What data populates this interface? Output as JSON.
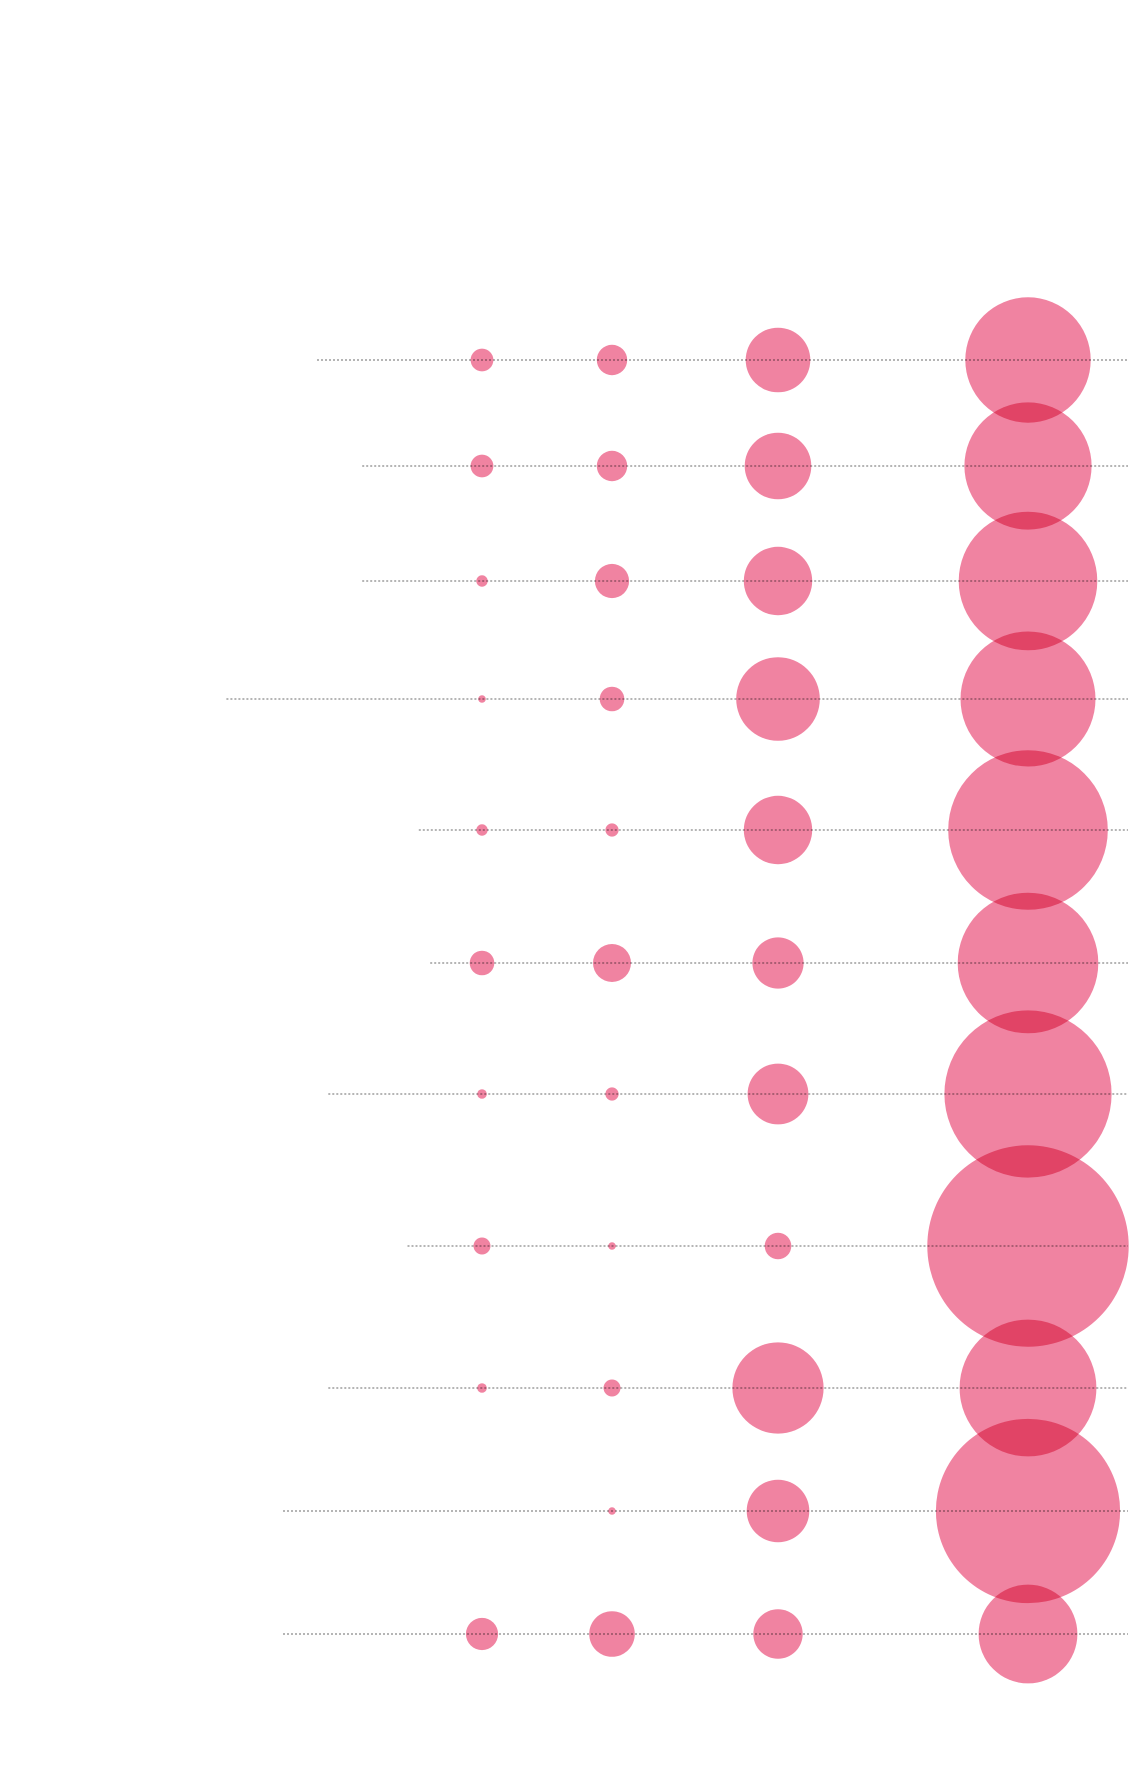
{
  "chart_data": {
    "type": "scatter",
    "title": "",
    "xlabel": "",
    "ylabel": "",
    "columns": 4,
    "rows": 11,
    "grid": false,
    "legend": "none",
    "colors": {
      "bubble": "#eb5a82",
      "bubble_opacity": 0.75,
      "line": "#6b6b6b",
      "background": "#ffffff"
    },
    "series": [
      {
        "values": [
          12,
          12,
          6,
          4,
          6,
          13,
          5,
          9,
          5,
          0,
          17
        ]
      },
      {
        "values": [
          16,
          16,
          18,
          13,
          7,
          20,
          7,
          4,
          9,
          4,
          24
        ]
      },
      {
        "values": [
          34,
          35,
          36,
          44,
          36,
          27,
          32,
          14,
          48,
          33,
          26
        ]
      },
      {
        "values": [
          66,
          67,
          73,
          71,
          84,
          74,
          88,
          106,
          72,
          97,
          52
        ]
      }
    ],
    "line_extent": [
      0.28,
      0.32,
      0.32,
      0.2,
      0.37,
      0.38,
      0.29,
      0.36,
      0.29,
      0.25,
      0.25
    ]
  }
}
